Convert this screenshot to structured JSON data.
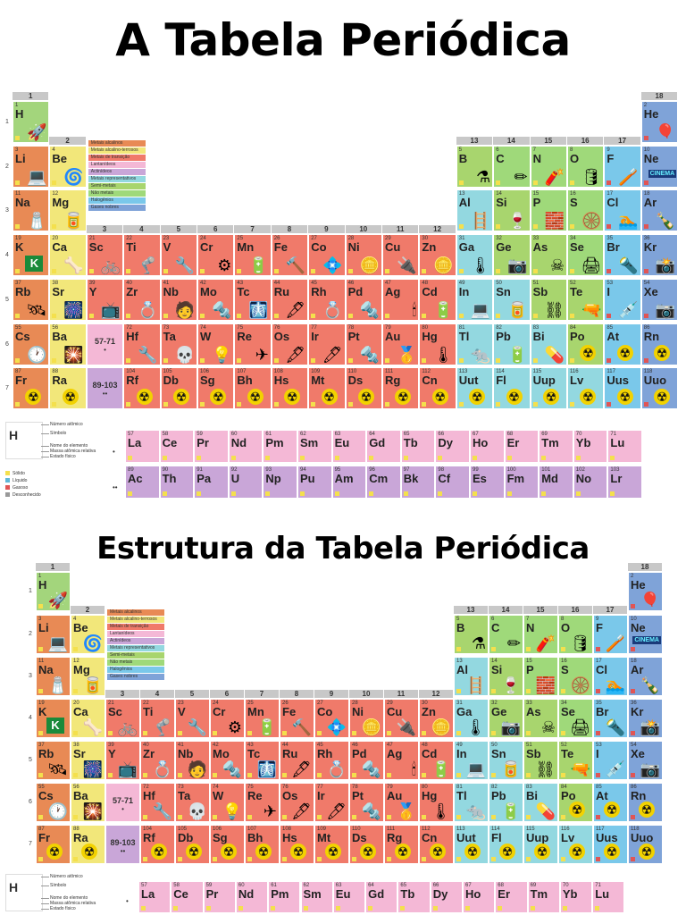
{
  "titles": {
    "main": "A Tabela Periódica",
    "secondary": "Estrutura da Tabela Periódica"
  },
  "colors": {
    "alkali": "#e88a55",
    "alkaline_earth": "#f2e77a",
    "transition": "#f07a6a",
    "lanthanide": "#f4b8d6",
    "actinide": "#c9a6d8",
    "post_transition": "#93d8e0",
    "metalloid": "#a8d56e",
    "nonmetal": "#9fd97a",
    "halogen": "#7ac8ea",
    "noble_gas": "#7fa3d8",
    "hydrogen": "#a3d57c",
    "unknown": "#cfcfcf"
  },
  "groups": [
    "1",
    "2",
    "3",
    "4",
    "5",
    "6",
    "7",
    "8",
    "9",
    "10",
    "11",
    "12",
    "13",
    "14",
    "15",
    "16",
    "17",
    "18"
  ],
  "periods": [
    "1",
    "2",
    "3",
    "4",
    "5",
    "6",
    "7"
  ],
  "placeholders": {
    "lanthanides": "57-71",
    "actinides": "89-103",
    "lan_mark": "•",
    "act_mark": "••"
  },
  "legend_classes": [
    "Metais alcalinos",
    "Metais alcalino-terrosos",
    "Metais de transição",
    "Lantanídeos",
    "Actinídeos",
    "Metais representativos",
    "Semi-metais",
    "Não metais",
    "Halogênios",
    "Gases nobres"
  ],
  "key_labels": [
    "Número atômico",
    "Símbolo",
    "Nome do elemento",
    "Massa atômica relativa",
    "Estado físico"
  ],
  "states": [
    "Sólido",
    "Líquido",
    "Gasoso",
    "Desconhecido"
  ],
  "elements": [
    {
      "n": "1",
      "s": "H",
      "c": "hydrogen",
      "g": 1,
      "p": 1,
      "i": "🚀"
    },
    {
      "n": "2",
      "s": "He",
      "c": "noble_gas",
      "g": 18,
      "p": 1,
      "i": "🎈"
    },
    {
      "n": "3",
      "s": "Li",
      "c": "alkali",
      "g": 1,
      "p": 2,
      "i": "💻"
    },
    {
      "n": "4",
      "s": "Be",
      "c": "alkaline_earth",
      "g": 2,
      "p": 2,
      "i": "🌀"
    },
    {
      "n": "5",
      "s": "B",
      "c": "metalloid",
      "g": 13,
      "p": 2,
      "i": "⚗"
    },
    {
      "n": "6",
      "s": "C",
      "c": "nonmetal",
      "g": 14,
      "p": 2,
      "i": "✏"
    },
    {
      "n": "7",
      "s": "N",
      "c": "nonmetal",
      "g": 15,
      "p": 2,
      "i": "🧨"
    },
    {
      "n": "8",
      "s": "O",
      "c": "nonmetal",
      "g": 16,
      "p": 2,
      "i": "🛢"
    },
    {
      "n": "9",
      "s": "F",
      "c": "halogen",
      "g": 17,
      "p": 2,
      "i": "🪥"
    },
    {
      "n": "10",
      "s": "Ne",
      "c": "noble_gas",
      "g": 18,
      "p": 2,
      "i": "CINEMA"
    },
    {
      "n": "11",
      "s": "Na",
      "c": "alkali",
      "g": 1,
      "p": 3,
      "i": "🧂"
    },
    {
      "n": "12",
      "s": "Mg",
      "c": "alkaline_earth",
      "g": 2,
      "p": 3,
      "i": "🥫"
    },
    {
      "n": "13",
      "s": "Al",
      "c": "post_transition",
      "g": 13,
      "p": 3,
      "i": "🪜"
    },
    {
      "n": "14",
      "s": "Si",
      "c": "metalloid",
      "g": 14,
      "p": 3,
      "i": "🍷"
    },
    {
      "n": "15",
      "s": "P",
      "c": "nonmetal",
      "g": 15,
      "p": 3,
      "i": "🧱"
    },
    {
      "n": "16",
      "s": "S",
      "c": "nonmetal",
      "g": 16,
      "p": 3,
      "i": "🛞"
    },
    {
      "n": "17",
      "s": "Cl",
      "c": "halogen",
      "g": 17,
      "p": 3,
      "i": "🏊"
    },
    {
      "n": "18",
      "s": "Ar",
      "c": "noble_gas",
      "g": 18,
      "p": 3,
      "i": "🍾"
    },
    {
      "n": "19",
      "s": "K",
      "c": "alkali",
      "g": 1,
      "p": 4,
      "i": "K"
    },
    {
      "n": "20",
      "s": "Ca",
      "c": "alkaline_earth",
      "g": 2,
      "p": 4,
      "i": "🦴"
    },
    {
      "n": "21",
      "s": "Sc",
      "c": "transition",
      "g": 3,
      "p": 4,
      "i": "🚲"
    },
    {
      "n": "22",
      "s": "Ti",
      "c": "transition",
      "g": 4,
      "p": 4,
      "i": "🦿"
    },
    {
      "n": "23",
      "s": "V",
      "c": "transition",
      "g": 5,
      "p": 4,
      "i": "🔧"
    },
    {
      "n": "24",
      "s": "Cr",
      "c": "transition",
      "g": 6,
      "p": 4,
      "i": "⚙"
    },
    {
      "n": "25",
      "s": "Mn",
      "c": "transition",
      "g": 7,
      "p": 4,
      "i": "🔋"
    },
    {
      "n": "26",
      "s": "Fe",
      "c": "transition",
      "g": 8,
      "p": 4,
      "i": "🔨"
    },
    {
      "n": "27",
      "s": "Co",
      "c": "transition",
      "g": 9,
      "p": 4,
      "i": "💠"
    },
    {
      "n": "28",
      "s": "Ni",
      "c": "transition",
      "g": 10,
      "p": 4,
      "i": "🪙"
    },
    {
      "n": "29",
      "s": "Cu",
      "c": "transition",
      "g": 11,
      "p": 4,
      "i": "🔌"
    },
    {
      "n": "30",
      "s": "Zn",
      "c": "transition",
      "g": 12,
      "p": 4,
      "i": "🪙"
    },
    {
      "n": "31",
      "s": "Ga",
      "c": "post_transition",
      "g": 13,
      "p": 4,
      "i": "🌡"
    },
    {
      "n": "32",
      "s": "Ge",
      "c": "metalloid",
      "g": 14,
      "p": 4,
      "i": "📷"
    },
    {
      "n": "33",
      "s": "As",
      "c": "metalloid",
      "g": 15,
      "p": 4,
      "i": "☠"
    },
    {
      "n": "34",
      "s": "Se",
      "c": "nonmetal",
      "g": 16,
      "p": 4,
      "i": "🖨"
    },
    {
      "n": "35",
      "s": "Br",
      "c": "halogen",
      "g": 17,
      "p": 4,
      "i": "🔦"
    },
    {
      "n": "36",
      "s": "Kr",
      "c": "noble_gas",
      "g": 18,
      "p": 4,
      "i": "📸"
    },
    {
      "n": "37",
      "s": "Rb",
      "c": "alkali",
      "g": 1,
      "p": 5,
      "i": "🛰"
    },
    {
      "n": "38",
      "s": "Sr",
      "c": "alkaline_earth",
      "g": 2,
      "p": 5,
      "i": "🎆"
    },
    {
      "n": "39",
      "s": "Y",
      "c": "transition",
      "g": 3,
      "p": 5,
      "i": "📺"
    },
    {
      "n": "40",
      "s": "Zr",
      "c": "transition",
      "g": 4,
      "p": 5,
      "i": "💍"
    },
    {
      "n": "41",
      "s": "Nb",
      "c": "transition",
      "g": 5,
      "p": 5,
      "i": "🧑"
    },
    {
      "n": "42",
      "s": "Mo",
      "c": "transition",
      "g": 6,
      "p": 5,
      "i": "🔩"
    },
    {
      "n": "43",
      "s": "Tc",
      "c": "transition",
      "g": 7,
      "p": 5,
      "i": "🩻"
    },
    {
      "n": "44",
      "s": "Ru",
      "c": "transition",
      "g": 8,
      "p": 5,
      "i": "🖋"
    },
    {
      "n": "45",
      "s": "Rh",
      "c": "transition",
      "g": 9,
      "p": 5,
      "i": "💍"
    },
    {
      "n": "46",
      "s": "Pd",
      "c": "transition",
      "g": 10,
      "p": 5,
      "i": "🔩"
    },
    {
      "n": "47",
      "s": "Ag",
      "c": "transition",
      "g": 11,
      "p": 5,
      "i": "🕯"
    },
    {
      "n": "48",
      "s": "Cd",
      "c": "transition",
      "g": 12,
      "p": 5,
      "i": "🔋"
    },
    {
      "n": "49",
      "s": "In",
      "c": "post_transition",
      "g": 13,
      "p": 5,
      "i": "💻"
    },
    {
      "n": "50",
      "s": "Sn",
      "c": "post_transition",
      "g": 14,
      "p": 5,
      "i": "🥫"
    },
    {
      "n": "51",
      "s": "Sb",
      "c": "metalloid",
      "g": 15,
      "p": 5,
      "i": "⛓"
    },
    {
      "n": "52",
      "s": "Te",
      "c": "metalloid",
      "g": 16,
      "p": 5,
      "i": "🔫"
    },
    {
      "n": "53",
      "s": "I",
      "c": "halogen",
      "g": 17,
      "p": 5,
      "i": "💉"
    },
    {
      "n": "54",
      "s": "Xe",
      "c": "noble_gas",
      "g": 18,
      "p": 5,
      "i": "📷"
    },
    {
      "n": "55",
      "s": "Cs",
      "c": "alkali",
      "g": 1,
      "p": 6,
      "i": "🕐"
    },
    {
      "n": "56",
      "s": "Ba",
      "c": "alkaline_earth",
      "g": 2,
      "p": 6,
      "i": "🎇"
    },
    {
      "n": "72",
      "s": "Hf",
      "c": "transition",
      "g": 4,
      "p": 6,
      "i": "🔧"
    },
    {
      "n": "73",
      "s": "Ta",
      "c": "transition",
      "g": 5,
      "p": 6,
      "i": "💀"
    },
    {
      "n": "74",
      "s": "W",
      "c": "transition",
      "g": 6,
      "p": 6,
      "i": "💡"
    },
    {
      "n": "75",
      "s": "Re",
      "c": "transition",
      "g": 7,
      "p": 6,
      "i": "✈"
    },
    {
      "n": "76",
      "s": "Os",
      "c": "transition",
      "g": 8,
      "p": 6,
      "i": "🖋"
    },
    {
      "n": "77",
      "s": "Ir",
      "c": "transition",
      "g": 9,
      "p": 6,
      "i": "🖊"
    },
    {
      "n": "78",
      "s": "Pt",
      "c": "transition",
      "g": 10,
      "p": 6,
      "i": "🔩"
    },
    {
      "n": "79",
      "s": "Au",
      "c": "transition",
      "g": 11,
      "p": 6,
      "i": "🥇"
    },
    {
      "n": "80",
      "s": "Hg",
      "c": "transition",
      "g": 12,
      "p": 6,
      "i": "🌡"
    },
    {
      "n": "81",
      "s": "Tl",
      "c": "post_transition",
      "g": 13,
      "p": 6,
      "i": "🐀"
    },
    {
      "n": "82",
      "s": "Pb",
      "c": "post_transition",
      "g": 14,
      "p": 6,
      "i": "🔋"
    },
    {
      "n": "83",
      "s": "Bi",
      "c": "post_transition",
      "g": 15,
      "p": 6,
      "i": "💊"
    },
    {
      "n": "84",
      "s": "Po",
      "c": "metalloid",
      "g": 16,
      "p": 6,
      "i": "☢"
    },
    {
      "n": "85",
      "s": "At",
      "c": "halogen",
      "g": 17,
      "p": 6,
      "i": "☢"
    },
    {
      "n": "86",
      "s": "Rn",
      "c": "noble_gas",
      "g": 18,
      "p": 6,
      "i": "☢"
    },
    {
      "n": "87",
      "s": "Fr",
      "c": "alkali",
      "g": 1,
      "p": 7,
      "i": "☢"
    },
    {
      "n": "88",
      "s": "Ra",
      "c": "alkaline_earth",
      "g": 2,
      "p": 7,
      "i": "☢"
    },
    {
      "n": "104",
      "s": "Rf",
      "c": "transition",
      "g": 4,
      "p": 7,
      "i": "☢"
    },
    {
      "n": "105",
      "s": "Db",
      "c": "transition",
      "g": 5,
      "p": 7,
      "i": "☢"
    },
    {
      "n": "106",
      "s": "Sg",
      "c": "transition",
      "g": 6,
      "p": 7,
      "i": "☢"
    },
    {
      "n": "107",
      "s": "Bh",
      "c": "transition",
      "g": 7,
      "p": 7,
      "i": "☢"
    },
    {
      "n": "108",
      "s": "Hs",
      "c": "transition",
      "g": 8,
      "p": 7,
      "i": "☢"
    },
    {
      "n": "109",
      "s": "Mt",
      "c": "transition",
      "g": 9,
      "p": 7,
      "i": "☢"
    },
    {
      "n": "110",
      "s": "Ds",
      "c": "transition",
      "g": 10,
      "p": 7,
      "i": "☢"
    },
    {
      "n": "111",
      "s": "Rg",
      "c": "transition",
      "g": 11,
      "p": 7,
      "i": "☢"
    },
    {
      "n": "112",
      "s": "Cn",
      "c": "transition",
      "g": 12,
      "p": 7,
      "i": "☢"
    },
    {
      "n": "113",
      "s": "Uut",
      "c": "post_transition",
      "g": 13,
      "p": 7,
      "i": "☢"
    },
    {
      "n": "114",
      "s": "Fl",
      "c": "post_transition",
      "g": 14,
      "p": 7,
      "i": "☢"
    },
    {
      "n": "115",
      "s": "Uup",
      "c": "post_transition",
      "g": 15,
      "p": 7,
      "i": "☢"
    },
    {
      "n": "116",
      "s": "Lv",
      "c": "post_transition",
      "g": 16,
      "p": 7,
      "i": "☢"
    },
    {
      "n": "117",
      "s": "Uus",
      "c": "halogen",
      "g": 17,
      "p": 7,
      "i": "☢"
    },
    {
      "n": "118",
      "s": "Uuo",
      "c": "noble_gas",
      "g": 18,
      "p": 7,
      "i": "☢"
    }
  ],
  "lanthanides": [
    {
      "n": "57",
      "s": "La"
    },
    {
      "n": "58",
      "s": "Ce"
    },
    {
      "n": "59",
      "s": "Pr"
    },
    {
      "n": "60",
      "s": "Nd"
    },
    {
      "n": "61",
      "s": "Pm"
    },
    {
      "n": "62",
      "s": "Sm"
    },
    {
      "n": "63",
      "s": "Eu"
    },
    {
      "n": "64",
      "s": "Gd"
    },
    {
      "n": "65",
      "s": "Tb"
    },
    {
      "n": "66",
      "s": "Dy"
    },
    {
      "n": "67",
      "s": "Ho"
    },
    {
      "n": "68",
      "s": "Er"
    },
    {
      "n": "69",
      "s": "Tm"
    },
    {
      "n": "70",
      "s": "Yb"
    },
    {
      "n": "71",
      "s": "Lu"
    }
  ],
  "actinides": [
    {
      "n": "89",
      "s": "Ac"
    },
    {
      "n": "90",
      "s": "Th"
    },
    {
      "n": "91",
      "s": "Pa"
    },
    {
      "n": "92",
      "s": "U"
    },
    {
      "n": "93",
      "s": "Np"
    },
    {
      "n": "94",
      "s": "Pu"
    },
    {
      "n": "95",
      "s": "Am"
    },
    {
      "n": "96",
      "s": "Cm"
    },
    {
      "n": "97",
      "s": "Bk"
    },
    {
      "n": "98",
      "s": "Cf"
    },
    {
      "n": "99",
      "s": "Es"
    },
    {
      "n": "100",
      "s": "Fm"
    },
    {
      "n": "101",
      "s": "Md"
    },
    {
      "n": "102",
      "s": "No"
    },
    {
      "n": "103",
      "s": "Lr"
    }
  ]
}
